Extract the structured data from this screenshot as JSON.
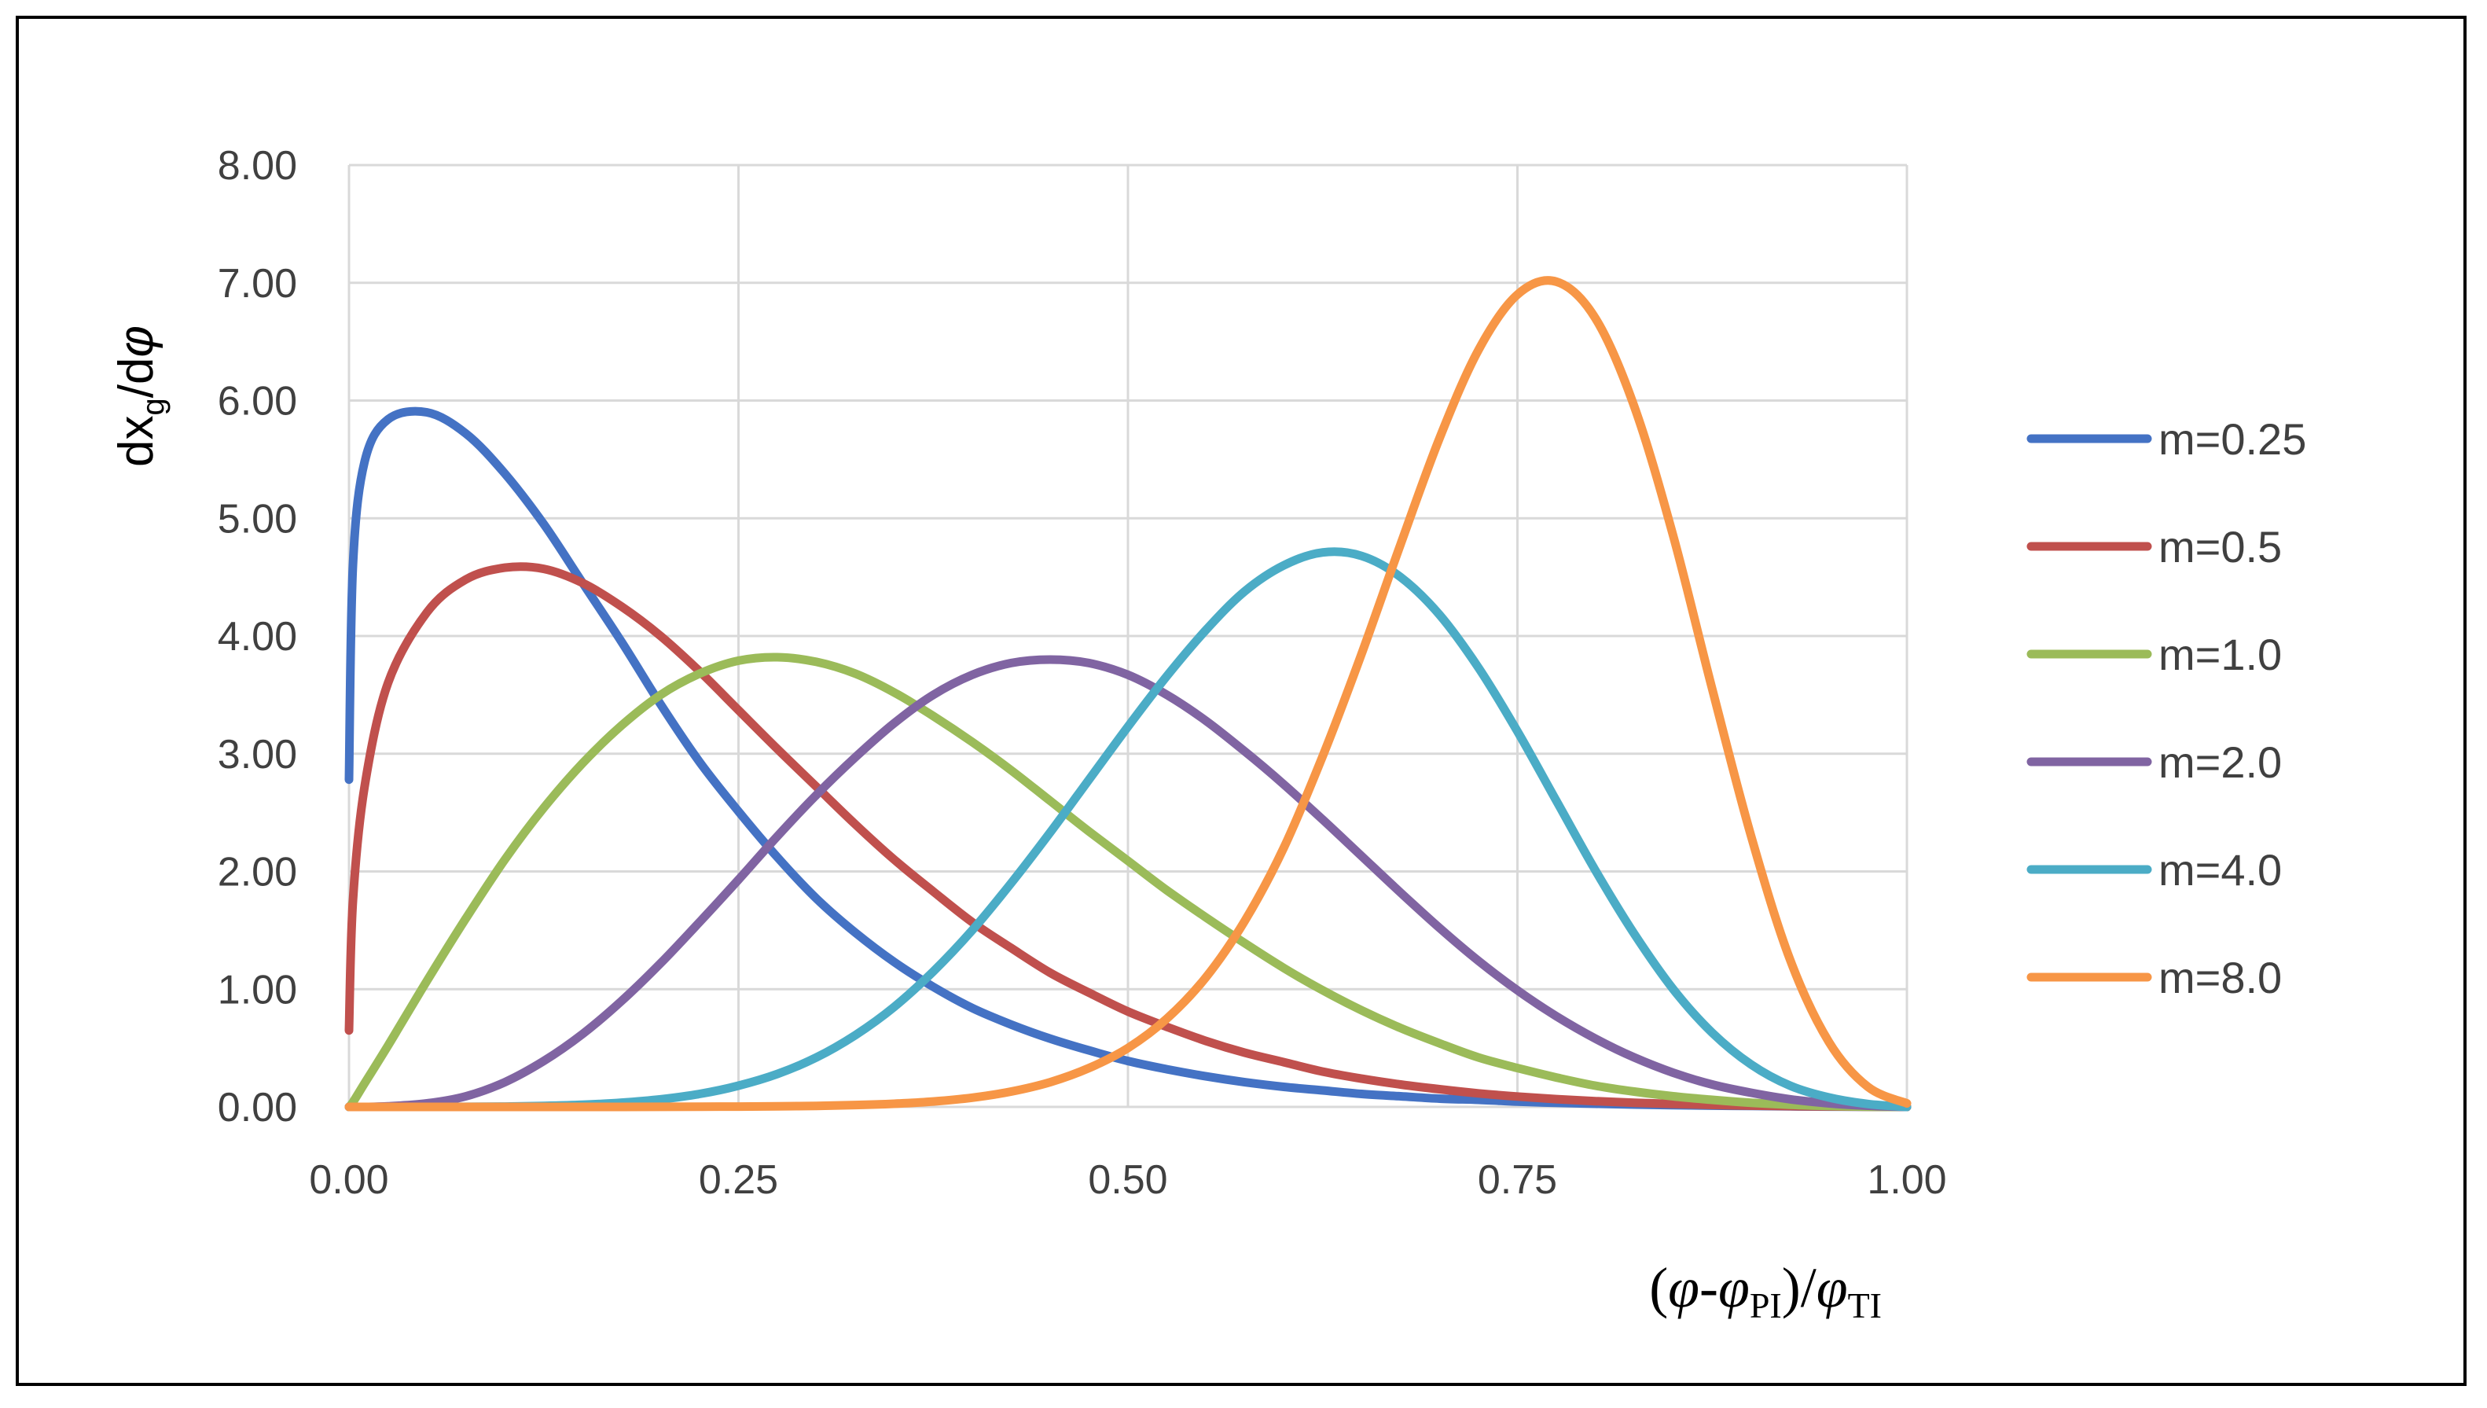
{
  "chart_data": {
    "type": "line",
    "title": "",
    "ylabel": {
      "main": "dx",
      "sub": "g",
      "rest": "/d",
      "phi": "φ"
    },
    "xlabel": {
      "open": "(",
      "phi1": "φ",
      "dash": "-",
      "phi2": "φ",
      "sub1": "PI",
      "close": ")/",
      "phi3": "φ",
      "sub2": "TI"
    },
    "xlim": [
      0,
      1
    ],
    "ylim": [
      0,
      8
    ],
    "x_ticks": [
      "0.00",
      "0.25",
      "0.50",
      "0.75",
      "1.00"
    ],
    "y_ticks": [
      "0.00",
      "1.00",
      "2.00",
      "3.00",
      "4.00",
      "5.00",
      "6.00",
      "7.00",
      "8.00"
    ],
    "grid": true,
    "legend_position": "right",
    "x": [
      0,
      0.0025,
      0.01,
      0.025,
      0.05,
      0.075,
      0.1,
      0.125,
      0.15,
      0.175,
      0.2,
      0.225,
      0.25,
      0.275,
      0.3,
      0.325,
      0.35,
      0.375,
      0.4,
      0.425,
      0.45,
      0.475,
      0.5,
      0.525,
      0.55,
      0.575,
      0.6,
      0.625,
      0.65,
      0.675,
      0.7,
      0.725,
      0.75,
      0.775,
      0.8,
      0.825,
      0.85,
      0.875,
      0.9,
      0.925,
      0.95,
      0.975,
      1.0
    ],
    "series": [
      {
        "name": "m=0.25",
        "color": "#4472C4",
        "values": [
          2.78,
          4.6,
          5.48,
          5.84,
          5.9,
          5.72,
          5.38,
          4.95,
          4.45,
          3.95,
          3.42,
          2.93,
          2.51,
          2.12,
          1.77,
          1.48,
          1.23,
          1.02,
          0.84,
          0.7,
          0.58,
          0.48,
          0.39,
          0.32,
          0.26,
          0.21,
          0.17,
          0.14,
          0.11,
          0.09,
          0.07,
          0.06,
          0.045,
          0.035,
          0.027,
          0.02,
          0.015,
          0.011,
          0.008,
          0.005,
          0.003,
          0.0015,
          0.0
        ]
      },
      {
        "name": "m=0.5",
        "color": "#C0504D",
        "values": [
          0.65,
          1.75,
          2.72,
          3.6,
          4.2,
          4.48,
          4.58,
          4.57,
          4.45,
          4.25,
          4.0,
          3.7,
          3.37,
          3.04,
          2.72,
          2.4,
          2.1,
          1.83,
          1.57,
          1.35,
          1.14,
          0.97,
          0.81,
          0.68,
          0.56,
          0.46,
          0.38,
          0.3,
          0.24,
          0.19,
          0.15,
          0.115,
          0.088,
          0.066,
          0.049,
          0.035,
          0.025,
          0.017,
          0.011,
          0.007,
          0.004,
          0.002,
          0.0
        ]
      },
      {
        "name": "m=1.0",
        "color": "#9BBB59",
        "values": [
          0.0,
          0.04,
          0.2,
          0.52,
          1.07,
          1.6,
          2.1,
          2.54,
          2.92,
          3.24,
          3.5,
          3.68,
          3.79,
          3.82,
          3.78,
          3.68,
          3.52,
          3.32,
          3.1,
          2.86,
          2.6,
          2.34,
          2.09,
          1.84,
          1.61,
          1.39,
          1.18,
          0.99,
          0.82,
          0.67,
          0.54,
          0.42,
          0.33,
          0.25,
          0.18,
          0.13,
          0.09,
          0.06,
          0.035,
          0.018,
          0.008,
          0.002,
          0.0
        ]
      },
      {
        "name": "m=2.0",
        "color": "#8064A2",
        "values": [
          0.0,
          0.0,
          0.0,
          0.005,
          0.03,
          0.09,
          0.21,
          0.39,
          0.62,
          0.9,
          1.22,
          1.57,
          1.93,
          2.3,
          2.65,
          2.97,
          3.26,
          3.5,
          3.67,
          3.77,
          3.8,
          3.77,
          3.67,
          3.5,
          3.28,
          3.02,
          2.74,
          2.44,
          2.13,
          1.82,
          1.52,
          1.24,
          0.99,
          0.77,
          0.58,
          0.42,
          0.29,
          0.19,
          0.12,
          0.065,
          0.03,
          0.01,
          0.0
        ]
      },
      {
        "name": "m=4.0",
        "color": "#4BACC6",
        "values": [
          0.0,
          0.0,
          0.0,
          0.0,
          0.0,
          0.001,
          0.003,
          0.008,
          0.018,
          0.036,
          0.065,
          0.11,
          0.18,
          0.28,
          0.42,
          0.61,
          0.85,
          1.15,
          1.5,
          1.9,
          2.33,
          2.78,
          3.23,
          3.66,
          4.05,
          4.38,
          4.6,
          4.71,
          4.68,
          4.5,
          4.18,
          3.73,
          3.19,
          2.6,
          2.01,
          1.47,
          1.0,
          0.63,
          0.36,
          0.18,
          0.08,
          0.025,
          0.0
        ]
      },
      {
        "name": "m=8.0",
        "color": "#F79646",
        "values": [
          0.0,
          0.0,
          0.0,
          0.0,
          0.0,
          0.0,
          0.0,
          0.0,
          0.0,
          0.0,
          0.001,
          0.002,
          0.003,
          0.005,
          0.009,
          0.016,
          0.027,
          0.046,
          0.078,
          0.13,
          0.21,
          0.33,
          0.5,
          0.75,
          1.1,
          1.58,
          2.2,
          2.98,
          3.85,
          4.78,
          5.68,
          6.43,
          6.9,
          7.01,
          6.7,
          5.95,
          4.85,
          3.55,
          2.3,
          1.25,
          0.55,
          0.17,
          0.03
        ]
      }
    ]
  }
}
